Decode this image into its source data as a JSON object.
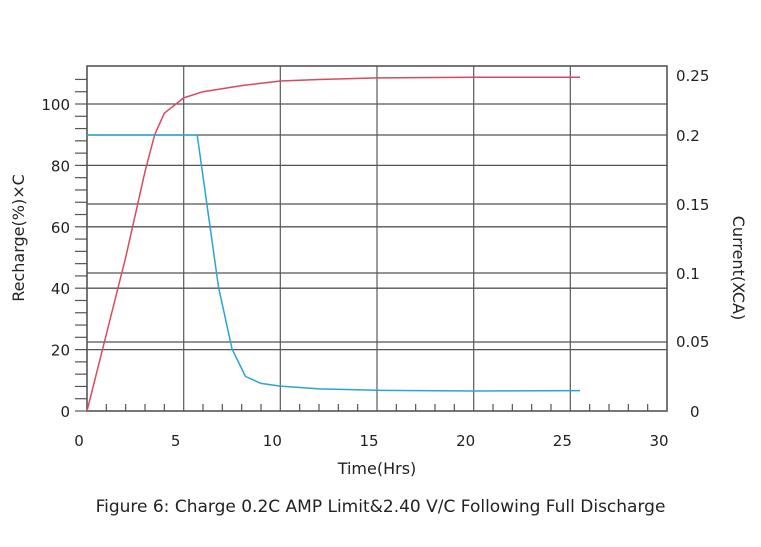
{
  "chart_data": {
    "type": "line",
    "title": "Figure 6: Charge 0.2C AMP Limit&2.40 V/C Following Full Discharge",
    "xlabel": "Time(Hrs)",
    "ylabel_left": "Recharge(%)×C",
    "ylabel_right": "Current(XCA)",
    "xlim": [
      0,
      30
    ],
    "ylim_left": [
      0,
      112
    ],
    "ylim_right": [
      0,
      0.26
    ],
    "x_ticks": [
      "0",
      "5",
      "10",
      "15",
      "20",
      "25",
      "30"
    ],
    "y_ticks_left": [
      "0",
      "20",
      "40",
      "60",
      "80",
      "100"
    ],
    "y_ticks_right": [
      "0",
      "0.05",
      "0.1",
      "0.15",
      "0.2",
      "0.25"
    ],
    "grid": true,
    "legend": null,
    "series": [
      {
        "name": "Recharge (%)",
        "axis": "left",
        "color": "#d94a5c",
        "x": [
          0,
          1,
          2,
          3,
          3.5,
          4,
          5,
          6,
          8,
          10,
          12,
          15,
          20,
          25.5
        ],
        "y": [
          0,
          25,
          50,
          78,
          90,
          97,
          102,
          104,
          106,
          107.5,
          108,
          108.5,
          108.7,
          108.7
        ]
      },
      {
        "name": "Current (XCA)",
        "axis": "right",
        "color": "#2aa5cf",
        "x": [
          0,
          5,
          5.7,
          6.2,
          6.8,
          7.5,
          8.2,
          9,
          10,
          12,
          15,
          20,
          25.5
        ],
        "y": [
          0.2,
          0.2,
          0.2,
          0.15,
          0.09,
          0.045,
          0.025,
          0.02,
          0.018,
          0.016,
          0.015,
          0.0145,
          0.0148
        ]
      }
    ]
  },
  "caption": "Figure 6: Charge 0.2C AMP Limit&2.40 V/C Following Full Discharge"
}
